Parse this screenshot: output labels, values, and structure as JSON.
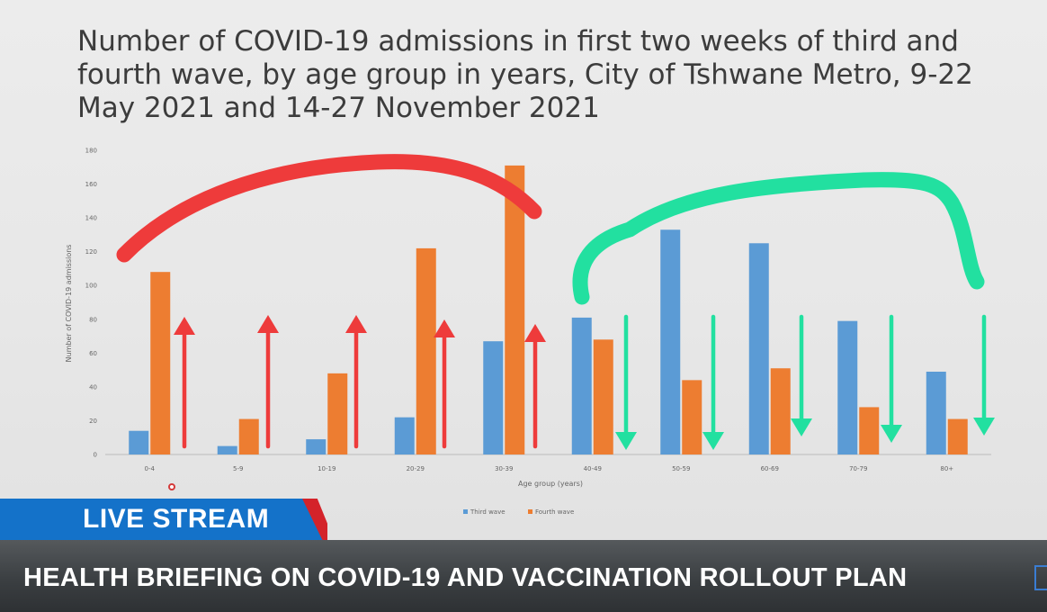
{
  "slide": {
    "title": "Number of COVID-19 admissions in first two weeks of third and fourth wave, by age group in years, City of Tshwane Metro, 9-22 May 2021 and 14-27 November 2021"
  },
  "chart_data": {
    "type": "bar",
    "title": "Number of COVID-19 admissions in first two weeks of third and fourth wave, by age group in years, City of Tshwane Metro, 9-22 May 2021 and 14-27 November 2021",
    "xlabel": "Age group (years)",
    "ylabel": "Number of COVID-19 admissions",
    "ylim": [
      0,
      180
    ],
    "yticks": [
      0,
      20,
      40,
      60,
      80,
      100,
      120,
      140,
      160,
      180
    ],
    "categories": [
      "0-4",
      "5-9",
      "10-19",
      "20-29",
      "30-39",
      "40-49",
      "50-59",
      "60-69",
      "70-79",
      "80+"
    ],
    "series": [
      {
        "name": "Third wave",
        "color": "#5b9bd5",
        "values": [
          14,
          5,
          9,
          22,
          67,
          81,
          133,
          125,
          79,
          49
        ]
      },
      {
        "name": "Fourth wave",
        "color": "#ed7d31",
        "values": [
          108,
          21,
          48,
          122,
          171,
          68,
          44,
          51,
          28,
          21
        ]
      }
    ],
    "legend_position": "bottom",
    "grid": false,
    "annotations": {
      "red_color": "#ee3b3b",
      "green_color": "#22e0a0",
      "up_arrows": 5,
      "down_arrows": 5
    }
  },
  "overlay": {
    "live_label": "LIVE STREAM",
    "ticker": "HEALTH BRIEFING ON COVID-19 AND VACCINATION ROLLOUT PLAN",
    "brand_blue": "#1472c9",
    "accent_red": "#d4232a"
  }
}
